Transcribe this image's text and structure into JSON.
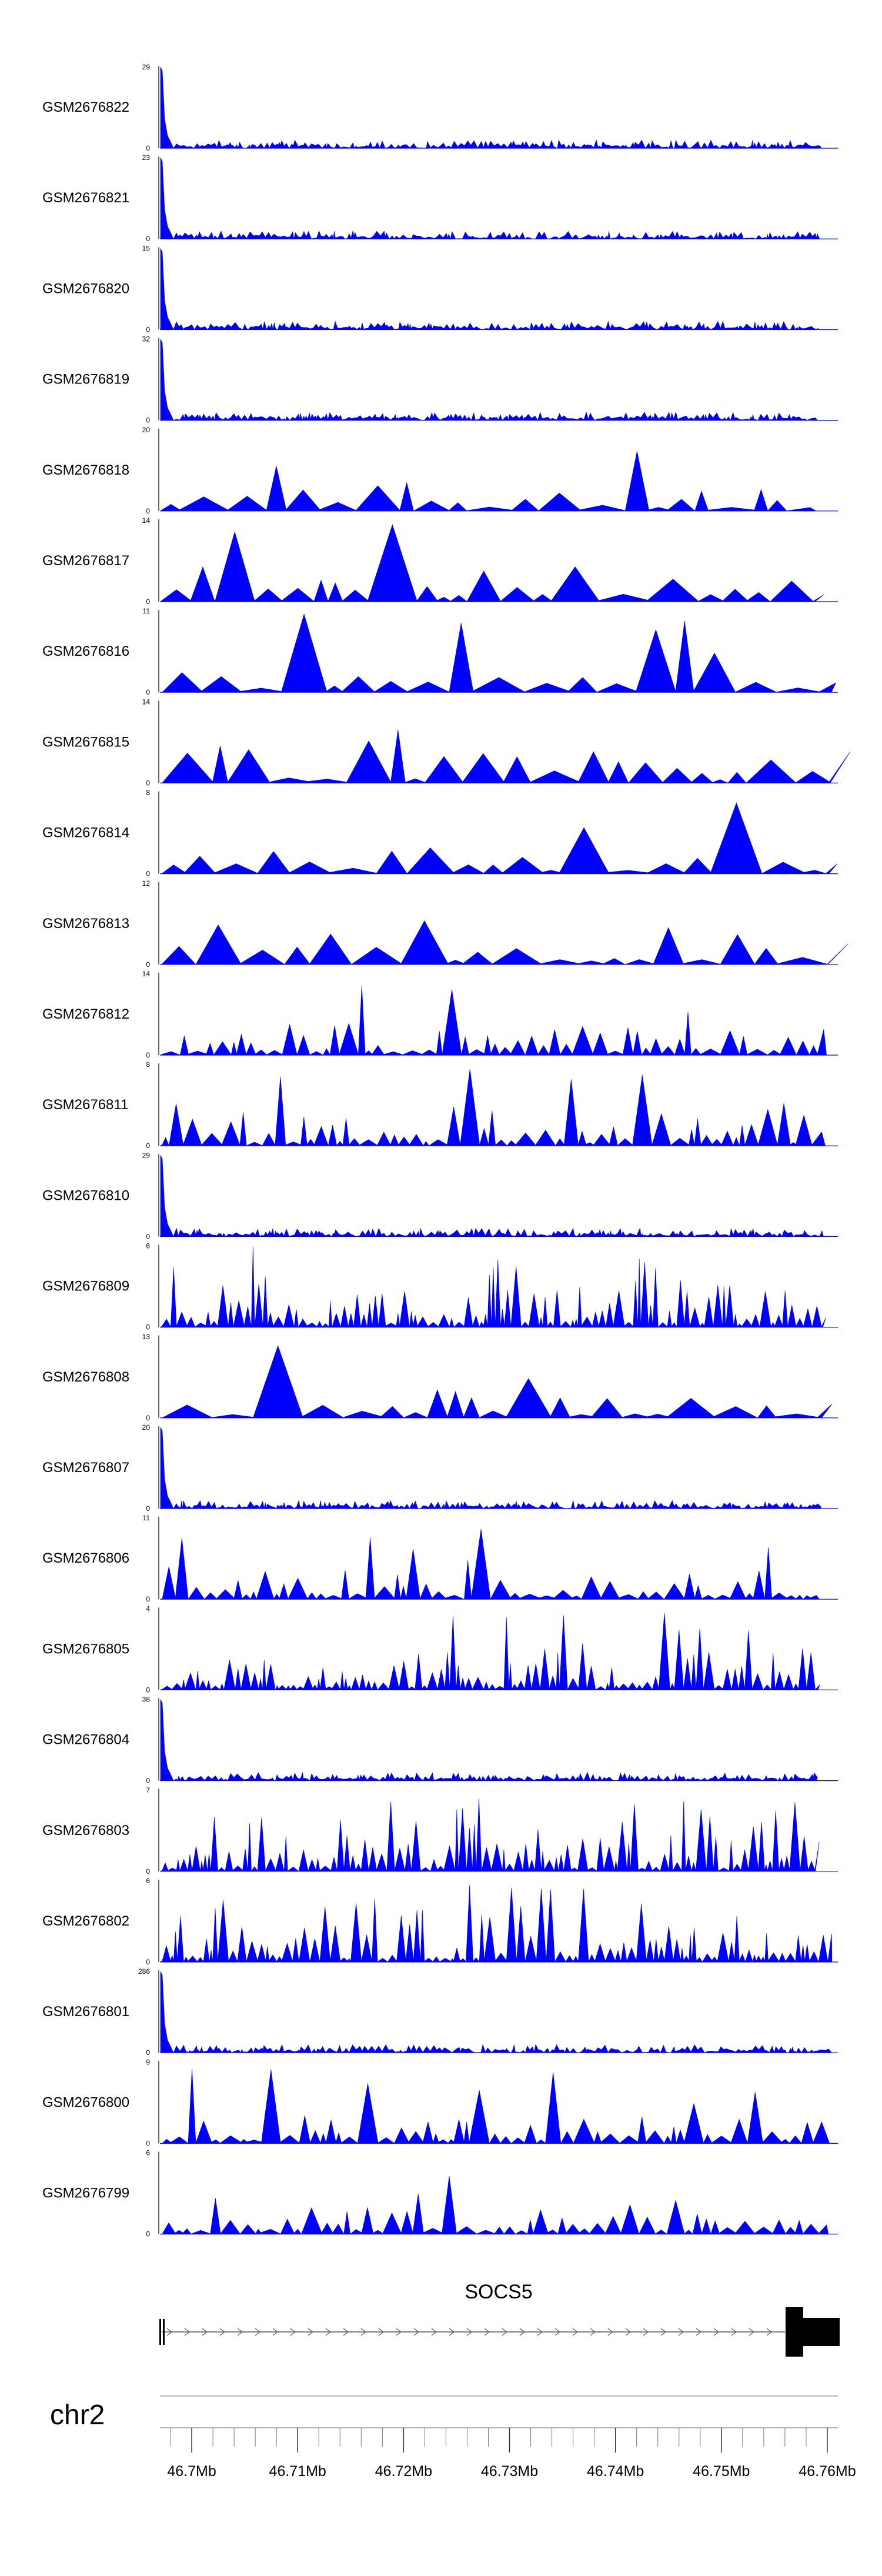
{
  "chart_data": {
    "type": "area",
    "title": "",
    "region": {
      "chromosome": "chr2",
      "start": 46697000,
      "end": 46761000
    },
    "color": "#0000ff",
    "tracks": [
      {
        "name": "GSM2676822",
        "ymax": 29,
        "ymin": 0,
        "profile": "spike"
      },
      {
        "name": "GSM2676821",
        "ymax": 23,
        "ymin": 0,
        "profile": "spike"
      },
      {
        "name": "GSM2676820",
        "ymax": 15,
        "ymin": 0,
        "profile": "spike"
      },
      {
        "name": "GSM2676819",
        "ymax": 32,
        "ymin": 0,
        "profile": "spike"
      },
      {
        "name": "GSM2676818",
        "ymax": 20,
        "ymin": 0,
        "profile": "sparse"
      },
      {
        "name": "GSM2676817",
        "ymax": 14,
        "ymin": 0,
        "profile": "sparse"
      },
      {
        "name": "GSM2676816",
        "ymax": 11,
        "ymin": 0,
        "profile": "sparse"
      },
      {
        "name": "GSM2676815",
        "ymax": 14,
        "ymin": 0,
        "profile": "sparse"
      },
      {
        "name": "GSM2676814",
        "ymax": 8,
        "ymin": 0,
        "profile": "sparse"
      },
      {
        "name": "GSM2676813",
        "ymax": 12,
        "ymin": 0,
        "profile": "sparse"
      },
      {
        "name": "GSM2676812",
        "ymax": 14,
        "ymin": 0,
        "profile": "medium"
      },
      {
        "name": "GSM2676811",
        "ymax": 8,
        "ymin": 0,
        "profile": "medium"
      },
      {
        "name": "GSM2676810",
        "ymax": 29,
        "ymin": 0,
        "profile": "spike"
      },
      {
        "name": "GSM2676809",
        "ymax": 6,
        "ymin": 0,
        "profile": "dense"
      },
      {
        "name": "GSM2676808",
        "ymax": 13,
        "ymin": 0,
        "profile": "sparse"
      },
      {
        "name": "GSM2676807",
        "ymax": 20,
        "ymin": 0,
        "profile": "spike"
      },
      {
        "name": "GSM2676806",
        "ymax": 11,
        "ymin": 0,
        "profile": "medium"
      },
      {
        "name": "GSM2676805",
        "ymax": 4,
        "ymin": 0,
        "profile": "dense"
      },
      {
        "name": "GSM2676804",
        "ymax": 38,
        "ymin": 0,
        "profile": "spike"
      },
      {
        "name": "GSM2676803",
        "ymax": 7,
        "ymin": 0,
        "profile": "dense"
      },
      {
        "name": "GSM2676802",
        "ymax": 6,
        "ymin": 0,
        "profile": "dense"
      },
      {
        "name": "GSM2676801",
        "ymax": 286,
        "ymin": 0,
        "profile": "spike"
      },
      {
        "name": "GSM2676800",
        "ymax": 9,
        "ymin": 0,
        "profile": "medium"
      },
      {
        "name": "GSM2676799",
        "ymax": 6,
        "ymin": 0,
        "profile": "medium"
      }
    ],
    "gene": {
      "name": "SOCS5",
      "strand": "+"
    },
    "chrom_label": "chr2",
    "axis": {
      "tick_labels": [
        "46.7Mb",
        "46.71Mb",
        "46.72Mb",
        "46.73Mb",
        "46.74Mb",
        "46.75Mb",
        "46.76Mb"
      ],
      "tick_values": [
        46700000,
        46710000,
        46720000,
        46730000,
        46740000,
        46750000,
        46760000
      ]
    }
  }
}
